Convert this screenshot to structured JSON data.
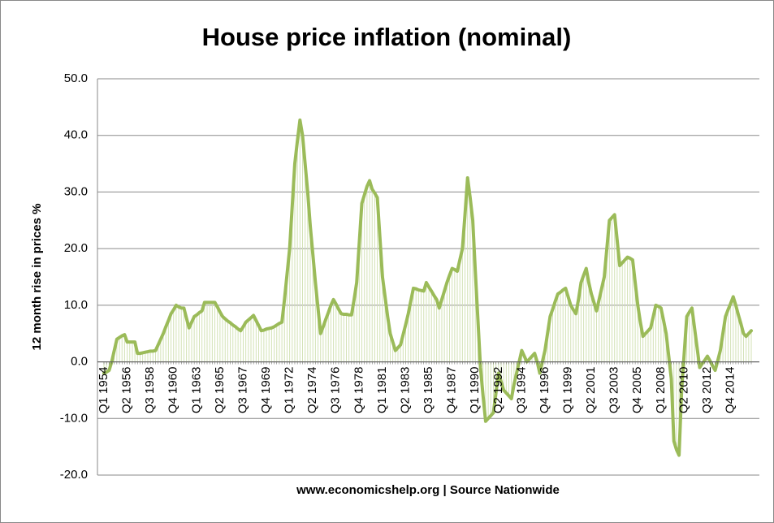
{
  "chart_data": {
    "type": "line",
    "title": "House price inflation (nominal)",
    "y_label": "12 month rise in prices %",
    "x_label": "www.economicshelp.org | Source Nationwide",
    "categories": [
      "Q1 1954",
      null,
      null,
      null,
      null,
      null,
      null,
      null,
      null,
      "Q2 1956",
      null,
      null,
      null,
      null,
      null,
      null,
      null,
      null,
      "Q3 1958",
      null,
      null,
      null,
      null,
      null,
      null,
      null,
      null,
      "Q4 1960",
      null,
      null,
      null,
      null,
      null,
      null,
      null,
      null,
      "Q1 1963",
      null,
      null,
      null,
      null,
      null,
      null,
      null,
      null,
      "Q2 1965",
      null,
      null,
      null,
      null,
      null,
      null,
      null,
      null,
      "Q3 1967",
      null,
      null,
      null,
      null,
      null,
      null,
      null,
      null,
      "Q4 1969",
      null,
      null,
      null,
      null,
      null,
      null,
      null,
      null,
      "Q1 1972",
      null,
      null,
      null,
      null,
      null,
      null,
      null,
      null,
      "Q2 1974",
      null,
      null,
      null,
      null,
      null,
      null,
      null,
      null,
      "Q3 1976",
      null,
      null,
      null,
      null,
      null,
      null,
      null,
      null,
      "Q4 1978",
      null,
      null,
      null,
      null,
      null,
      null,
      null,
      null,
      "Q1 1981",
      null,
      null,
      null,
      null,
      null,
      null,
      null,
      null,
      "Q2 1983",
      null,
      null,
      null,
      null,
      null,
      null,
      null,
      null,
      "Q3 1985",
      null,
      null,
      null,
      null,
      null,
      null,
      null,
      null,
      "Q4 1987",
      null,
      null,
      null,
      null,
      null,
      null,
      null,
      null,
      "Q1 1990",
      null,
      null,
      null,
      null,
      null,
      null,
      null,
      null,
      "Q2 1992",
      null,
      null,
      null,
      null,
      null,
      null,
      null,
      null,
      "Q3 1994",
      null,
      null,
      null,
      null,
      null,
      null,
      null,
      null,
      "Q4 1996",
      null,
      null,
      null,
      null,
      null,
      null,
      null,
      null,
      "Q1 1999",
      null,
      null,
      null,
      null,
      null,
      null,
      null,
      null,
      "Q2 2001",
      null,
      null,
      null,
      null,
      null,
      null,
      null,
      null,
      "Q3 2003",
      null,
      null,
      null,
      null,
      null,
      null,
      null,
      null,
      "Q4 2005",
      null,
      null,
      null,
      null,
      null,
      null,
      null,
      null,
      "Q1 2008",
      null,
      null,
      null,
      null,
      null,
      null,
      null,
      null,
      "Q2 2010",
      null,
      null,
      null,
      null,
      null,
      null,
      null,
      null,
      "Q3 2012",
      null,
      null,
      null,
      null,
      null,
      null,
      null,
      null,
      "Q4 2014",
      null,
      null,
      null,
      null,
      null,
      null,
      null,
      null
    ],
    "values": [
      -2,
      -1.8,
      -1.5,
      0,
      2,
      4,
      4.3,
      4.6,
      4.8,
      3.5,
      3.5,
      3.5,
      3.5,
      1.5,
      1.5,
      1.6,
      1.7,
      1.8,
      1.9,
      1.9,
      2,
      3,
      4,
      5,
      6.2,
      7.3,
      8.5,
      9.2,
      10,
      9.7,
      9.5,
      9.5,
      7.7,
      6,
      7,
      8,
      8.3,
      8.7,
      9,
      10.5,
      10.5,
      10.5,
      10.5,
      10.5,
      9.7,
      8.8,
      8,
      7.6,
      7.2,
      6.9,
      6.5,
      6.2,
      5.8,
      5.5,
      6.2,
      7,
      7.4,
      7.8,
      8.2,
      7.3,
      6.4,
      5.5,
      5.6,
      5.8,
      5.9,
      6,
      6.2,
      6.5,
      6.8,
      7,
      11,
      15.5,
      20,
      27.5,
      35,
      39,
      42.7,
      40,
      35,
      30,
      24,
      19,
      14,
      9.5,
      5,
      6.2,
      7.5,
      8.7,
      10,
      11,
      10.2,
      9.3,
      8.5,
      8.4,
      8.4,
      8.3,
      8.3,
      11,
      14,
      21,
      28,
      29.5,
      31,
      32,
      30.5,
      29.8,
      29,
      22,
      15,
      11.5,
      8,
      5,
      3.5,
      2,
      2.5,
      3,
      4.8,
      6.6,
      8.5,
      10.8,
      13,
      12.9,
      12.7,
      12.6,
      12.5,
      14,
      13.2,
      12.5,
      11.7,
      11,
      9.5,
      11,
      12.5,
      14,
      15.3,
      16.5,
      16.3,
      16,
      18,
      20,
      26,
      32.5,
      29,
      25,
      16,
      7.5,
      -1,
      -6,
      -10.5,
      -10,
      -9.5,
      -9,
      -5.5,
      -2,
      -3.5,
      -5,
      -5.5,
      -6,
      -6.5,
      -4,
      -2,
      0,
      2,
      1,
      0,
      0.5,
      1,
      1.5,
      0,
      -2,
      0,
      2,
      5,
      8,
      9.3,
      10.7,
      12,
      12.3,
      12.7,
      13,
      11.5,
      10,
      9.2,
      8.5,
      11,
      14,
      15.3,
      16.5,
      14,
      12,
      10.5,
      9,
      11,
      13,
      15,
      20,
      25,
      25.5,
      26,
      21.5,
      17,
      17.5,
      18,
      18.5,
      18.3,
      18,
      14,
      10,
      7,
      4.5,
      5,
      5.5,
      6,
      8,
      10,
      9.8,
      9.5,
      7.3,
      5,
      1,
      -3,
      -14,
      -15.5,
      -16.5,
      -5,
      1.5,
      8,
      8.8,
      9.5,
      6,
      2.5,
      -1,
      -0.3,
      0.3,
      1,
      0.2,
      -0.7,
      -1.5,
      0.2,
      2,
      5,
      8,
      9.2,
      10.3,
      11.5,
      10,
      8.3,
      6.7,
      5,
      4.5,
      5,
      5.5
    ],
    "color": "#9bbb59",
    "ylim": [
      -20,
      50
    ],
    "yticks": [
      {
        "value": -20,
        "label": "-20.0"
      },
      {
        "value": -10,
        "label": "-10.0"
      },
      {
        "value": 0,
        "label": "0.0"
      },
      {
        "value": 10,
        "label": "10.0"
      },
      {
        "value": 20,
        "label": "20.0"
      },
      {
        "value": 30,
        "label": "30.0"
      },
      {
        "value": 40,
        "label": "40.0"
      },
      {
        "value": 50,
        "label": "50.0"
      }
    ],
    "grid": true
  }
}
